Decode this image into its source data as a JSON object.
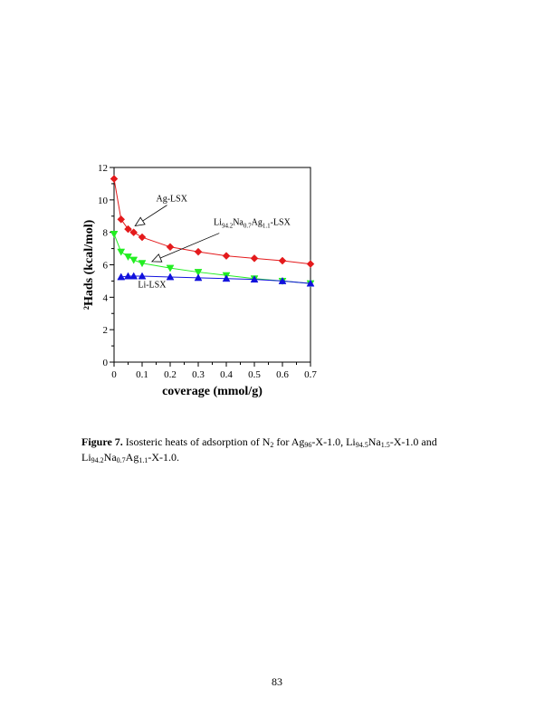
{
  "chart_data": {
    "type": "line",
    "xlabel": "coverage (mmol/g)",
    "ylabel": "²Hads (kcal/mol)",
    "xlim": [
      0,
      0.7
    ],
    "ylim": [
      0,
      12
    ],
    "x_major": 0.1,
    "x_minor": 0.05,
    "y_major": 2,
    "y_minor": 1,
    "grid": false,
    "legend": "none",
    "series": [
      {
        "label": "Ag-LSX",
        "color": "#e41a1c",
        "marker": "diamond",
        "x": [
          0.0,
          0.025,
          0.05,
          0.07,
          0.1,
          0.2,
          0.3,
          0.4,
          0.5,
          0.6,
          0.7
        ],
        "y": [
          11.3,
          8.8,
          8.2,
          8.0,
          7.7,
          7.1,
          6.8,
          6.55,
          6.4,
          6.25,
          6.05
        ]
      },
      {
        "label": "Li94.2Na0.7Ag1.1-LSX",
        "color": "#22ee22",
        "marker": "triangle-down",
        "x": [
          0.0,
          0.025,
          0.05,
          0.07,
          0.1,
          0.2,
          0.3,
          0.4,
          0.5,
          0.6,
          0.7
        ],
        "y": [
          7.9,
          6.8,
          6.5,
          6.3,
          6.1,
          5.8,
          5.55,
          5.35,
          5.15,
          5.0,
          4.85
        ]
      },
      {
        "label": "Li-LSX",
        "color": "#1111dd",
        "marker": "triangle-up",
        "x": [
          0.025,
          0.05,
          0.07,
          0.1,
          0.2,
          0.3,
          0.4,
          0.5,
          0.6,
          0.7
        ],
        "y": [
          5.25,
          5.3,
          5.3,
          5.3,
          5.25,
          5.2,
          5.15,
          5.1,
          5.0,
          4.85
        ]
      }
    ],
    "annotations": [
      {
        "parts": [
          {
            "t": "Ag-LSX"
          }
        ],
        "tx": 0.15,
        "ty": 9.9,
        "arrow_to": [
          0.075,
          8.4
        ]
      },
      {
        "parts": [
          {
            "t": "Li"
          },
          {
            "t": "94.2",
            "sub": true
          },
          {
            "t": "Na"
          },
          {
            "t": "0.7",
            "sub": true
          },
          {
            "t": "Ag"
          },
          {
            "t": "1.1",
            "sub": true
          },
          {
            "t": "-LSX"
          }
        ],
        "tx": 0.355,
        "ty": 8.45,
        "arrow_to": [
          0.135,
          6.2
        ],
        "arrow_from": [
          0.375,
          7.95
        ]
      },
      {
        "parts": [
          {
            "t": "Li-LSX"
          }
        ],
        "tx": 0.085,
        "ty": 4.6
      }
    ]
  },
  "caption": {
    "label": "Figure 7.",
    "text_1": "  Isosteric heats of adsorption of N",
    "sub_1": "2",
    "text_2": " for Ag",
    "sub_2": "96",
    "text_3": "-X-1.0,  Li",
    "sub_3": "94.5",
    "text_4": "Na",
    "sub_4": "1.5",
    "text_5": "-X-1.0 and Li",
    "sub_5": "94.2",
    "text_6": "Na",
    "sub_6": "0.7",
    "text_7": "Ag",
    "sub_7": "1.1",
    "text_8": "-X-1.0."
  },
  "page_number": "83"
}
